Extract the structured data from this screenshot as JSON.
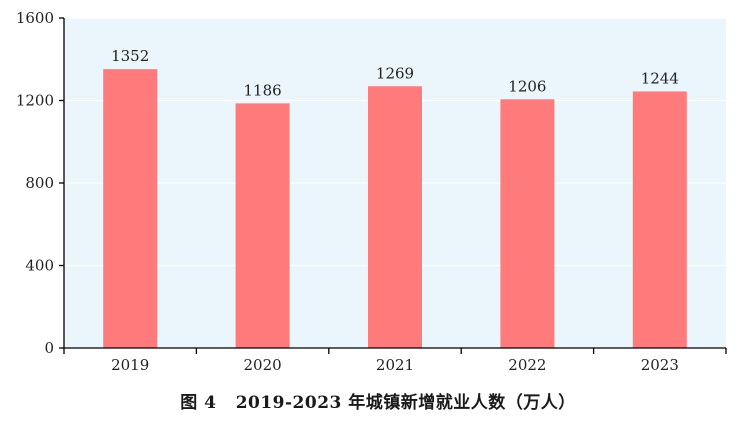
{
  "caption": "图 4   2019-2023 年城镇新增就业人数（万人）",
  "colors": {
    "bar": "#ff7b7b",
    "plot_background": "#eaf6fb",
    "gridline": "#ffffff",
    "axis": "#000000"
  },
  "chart_data": {
    "type": "bar",
    "title": "",
    "xlabel": "",
    "ylabel": "",
    "categories": [
      "2019",
      "2020",
      "2021",
      "2022",
      "2023"
    ],
    "values": [
      1352,
      1186,
      1269,
      1206,
      1244
    ],
    "data_labels": [
      "1352",
      "1186",
      "1269",
      "1206",
      "1244"
    ],
    "ylim": [
      0,
      1600
    ],
    "yticks": [
      0,
      400,
      800,
      1200,
      1600
    ],
    "ytick_labels": [
      "0",
      "400",
      "800",
      "1200",
      "1600"
    ],
    "grid": true,
    "legend": "none"
  }
}
